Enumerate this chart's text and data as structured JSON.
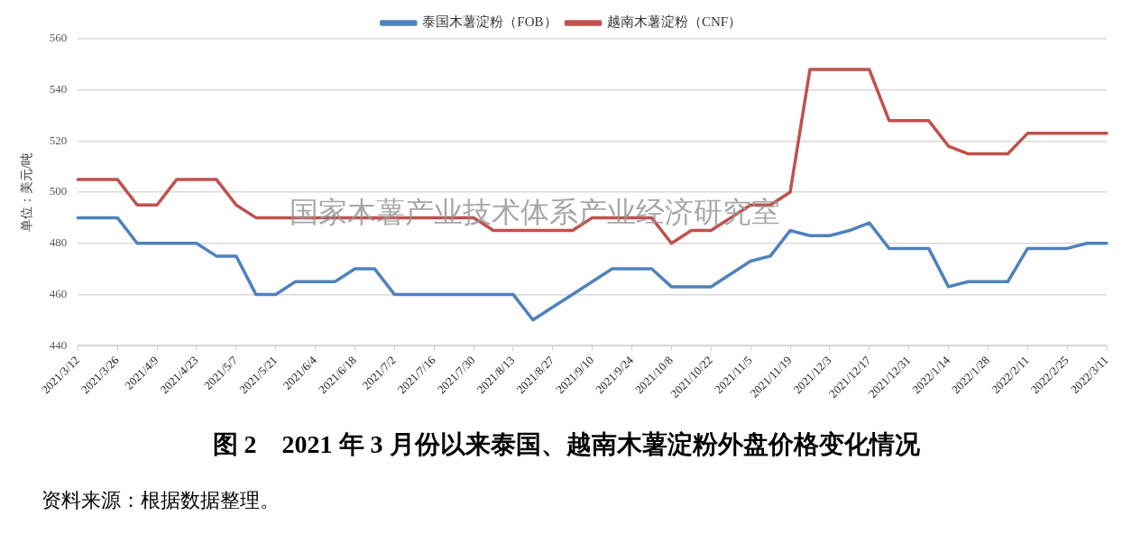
{
  "chart_data": {
    "type": "line",
    "title": "图 2　2021 年 3 月份以来泰国、越南木薯淀粉外盘价格变化情况",
    "ylabel": "单位：美元/吨",
    "annotations": [
      "国家木薯产业技术体系产业经济研究室",
      "资料来源：根据数据整理。"
    ],
    "categories": [
      "2021/3/12",
      null,
      "2021/3/26",
      null,
      "2021/4/9",
      null,
      "2021/4/23",
      null,
      "2021/5/7",
      null,
      "2021/5/21",
      null,
      "2021/6/4",
      null,
      "2021/6/18",
      null,
      "2021/7/2",
      null,
      "2021/7/16",
      null,
      "2021/7/30",
      null,
      "2021/8/13",
      null,
      "2021/8/27",
      null,
      "2021/9/10",
      null,
      "2021/9/24",
      null,
      "2021/10/8",
      null,
      "2021/10/22",
      null,
      "2021/11/5",
      null,
      "2021/11/19",
      null,
      "2021/12/3",
      null,
      "2021/12/17",
      null,
      "2021/12/31",
      null,
      "2022/1/14",
      null,
      "2022/1/28",
      null,
      "2022/2/11",
      null,
      "2022/2/25",
      null,
      "2022/3/11"
    ],
    "series": [
      {
        "name": "泰国木薯淀粉（FOB）",
        "color": "#4f81bd",
        "values": [
          490,
          490,
          490,
          480,
          480,
          480,
          480,
          475,
          475,
          460,
          460,
          465,
          465,
          465,
          470,
          470,
          460,
          460,
          460,
          460,
          460,
          460,
          460,
          450,
          455,
          460,
          465,
          470,
          470,
          470,
          463,
          463,
          463,
          468,
          473,
          475,
          485,
          483,
          483,
          485,
          488,
          478,
          478,
          478,
          463,
          465,
          465,
          465,
          478,
          478,
          478,
          480,
          480
        ]
      },
      {
        "name": "越南木薯淀粉（CNF）",
        "color": "#c0504d",
        "values": [
          505,
          505,
          505,
          495,
          495,
          505,
          505,
          505,
          495,
          490,
          490,
          490,
          490,
          490,
          490,
          490,
          490,
          490,
          490,
          490,
          490,
          485,
          485,
          485,
          485,
          485,
          490,
          490,
          490,
          490,
          480,
          485,
          485,
          490,
          495,
          495,
          500,
          548,
          548,
          548,
          548,
          528,
          528,
          528,
          518,
          515,
          515,
          515,
          523,
          523,
          523,
          523,
          523
        ]
      }
    ],
    "ylim": [
      440,
      560
    ],
    "yticks": [
      440,
      460,
      480,
      500,
      520,
      540,
      560
    ],
    "grid": "y",
    "legend": "top",
    "marker": "none",
    "line_style": "solid"
  }
}
